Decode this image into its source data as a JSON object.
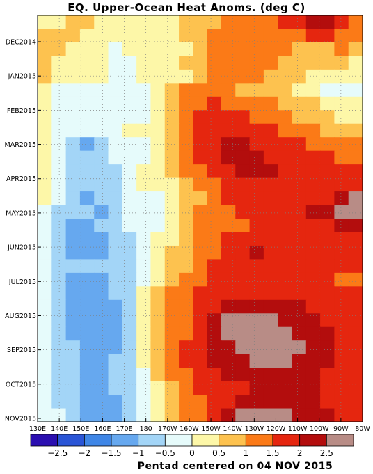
{
  "chart_data": {
    "type": "heatmap",
    "title": "EQ. Upper-Ocean Heat Anoms. (deg C)",
    "footer": "Pentad centered on 04 NOV 2015",
    "x_ticks": [
      "130E",
      "140E",
      "150E",
      "160E",
      "170E",
      "180",
      "170W",
      "160W",
      "150W",
      "140W",
      "130W",
      "120W",
      "110W",
      "100W",
      "90W",
      "80W"
    ],
    "y_ticks": [
      "DEC2014",
      "JAN2015",
      "FEB2015",
      "MAR2015",
      "APR2015",
      "MAY2015",
      "JUN2015",
      "JUL2015",
      "AUG2015",
      "SEP2015",
      "OCT2015",
      "NOV2015"
    ],
    "colorbar": {
      "labels": [
        "-2.5",
        "-2",
        "-1.5",
        "-1",
        "-0.5",
        "0",
        "0.5",
        "1",
        "1.5",
        "2",
        "2.5"
      ],
      "colors": [
        "#2b0fb0",
        "#2a55d6",
        "#3f86e6",
        "#66a8ef",
        "#a3d5f7",
        "#e6fbfb",
        "#fdf7a8",
        "#fdc24f",
        "#fb7a17",
        "#e5260f",
        "#b30d0d",
        "#b88c86"
      ]
    },
    "field": [
      [
        1,
        1,
        2,
        2,
        1,
        1,
        1,
        1,
        1,
        1,
        2,
        2,
        2,
        3,
        3,
        3,
        3,
        4,
        4,
        5,
        5,
        4,
        3
      ],
      [
        2,
        2,
        2,
        1,
        1,
        1,
        1,
        1,
        1,
        1,
        2,
        2,
        3,
        3,
        3,
        3,
        3,
        3,
        3,
        4,
        4,
        3,
        3
      ],
      [
        2,
        2,
        1,
        1,
        1,
        0,
        1,
        1,
        1,
        1,
        1,
        2,
        3,
        3,
        3,
        3,
        3,
        3,
        2,
        2,
        2,
        3,
        2
      ],
      [
        2,
        1,
        1,
        1,
        1,
        0,
        0,
        1,
        1,
        1,
        2,
        2,
        3,
        3,
        3,
        3,
        3,
        2,
        2,
        2,
        2,
        2,
        1
      ],
      [
        2,
        1,
        1,
        1,
        1,
        0,
        0,
        1,
        1,
        1,
        1,
        2,
        3,
        3,
        3,
        3,
        2,
        2,
        2,
        1,
        1,
        1,
        1
      ],
      [
        1,
        0,
        0,
        0,
        0,
        0,
        0,
        0,
        1,
        2,
        3,
        3,
        3,
        3,
        2,
        2,
        2,
        2,
        1,
        1,
        0,
        0,
        0
      ],
      [
        1,
        0,
        0,
        0,
        0,
        0,
        0,
        0,
        1,
        2,
        3,
        3,
        4,
        3,
        3,
        3,
        3,
        2,
        2,
        2,
        1,
        1,
        1
      ],
      [
        1,
        0,
        0,
        0,
        0,
        0,
        0,
        0,
        1,
        2,
        3,
        4,
        4,
        4,
        4,
        3,
        3,
        3,
        2,
        2,
        2,
        1,
        1
      ],
      [
        1,
        0,
        0,
        0,
        0,
        0,
        1,
        1,
        1,
        2,
        3,
        4,
        4,
        4,
        4,
        4,
        4,
        3,
        3,
        3,
        2,
        2,
        2
      ],
      [
        1,
        0,
        -1,
        -2,
        -1,
        0,
        0,
        0,
        1,
        2,
        3,
        4,
        4,
        5,
        5,
        4,
        4,
        4,
        4,
        3,
        3,
        3,
        3
      ],
      [
        1,
        0,
        -1,
        -1,
        -1,
        0,
        0,
        0,
        1,
        2,
        3,
        4,
        4,
        5,
        5,
        5,
        4,
        4,
        4,
        4,
        4,
        3,
        3
      ],
      [
        1,
        0,
        -1,
        -1,
        -1,
        -1,
        0,
        1,
        1,
        2,
        3,
        3,
        4,
        4,
        5,
        5,
        5,
        4,
        4,
        4,
        4,
        4,
        4
      ],
      [
        1,
        0,
        -1,
        -1,
        -1,
        -1,
        0,
        1,
        1,
        1,
        2,
        3,
        3,
        4,
        4,
        4,
        4,
        4,
        4,
        4,
        4,
        4,
        4
      ],
      [
        1,
        0,
        -1,
        -2,
        -1,
        -1,
        0,
        0,
        0,
        1,
        2,
        2,
        3,
        4,
        4,
        4,
        4,
        4,
        4,
        4,
        4,
        5,
        6
      ],
      [
        0,
        -1,
        -1,
        -1,
        -2,
        -1,
        0,
        0,
        0,
        1,
        2,
        3,
        3,
        3,
        4,
        4,
        4,
        4,
        4,
        5,
        5,
        6,
        6
      ],
      [
        0,
        -1,
        -2,
        -2,
        -1,
        -1,
        0,
        0,
        0,
        1,
        2,
        3,
        3,
        3,
        3,
        4,
        4,
        4,
        4,
        4,
        4,
        5,
        5
      ],
      [
        0,
        -1,
        -2,
        -2,
        -2,
        -1,
        -1,
        0,
        1,
        1,
        2,
        3,
        3,
        4,
        4,
        4,
        4,
        4,
        4,
        4,
        4,
        4,
        4
      ],
      [
        0,
        -1,
        -2,
        -2,
        -2,
        -1,
        -1,
        0,
        1,
        2,
        2,
        3,
        3,
        4,
        4,
        5,
        4,
        4,
        4,
        4,
        4,
        4,
        4
      ],
      [
        0,
        -1,
        -1,
        -1,
        -1,
        -1,
        -1,
        0,
        1,
        2,
        2,
        3,
        4,
        4,
        4,
        4,
        4,
        4,
        4,
        4,
        4,
        4,
        4
      ],
      [
        0,
        -1,
        -2,
        -2,
        -2,
        -1,
        -1,
        0,
        1,
        2,
        3,
        3,
        4,
        4,
        4,
        4,
        4,
        4,
        4,
        4,
        4,
        3,
        3
      ],
      [
        0,
        -1,
        -2,
        -2,
        -2,
        -1,
        -1,
        1,
        2,
        3,
        3,
        4,
        4,
        4,
        4,
        4,
        4,
        4,
        4,
        4,
        4,
        4,
        4
      ],
      [
        0,
        -1,
        -2,
        -2,
        -2,
        -2,
        -1,
        1,
        2,
        3,
        3,
        4,
        4,
        5,
        5,
        5,
        5,
        5,
        5,
        4,
        4,
        4,
        4
      ],
      [
        0,
        -1,
        -2,
        -2,
        -2,
        -2,
        -1,
        1,
        2,
        3,
        3,
        4,
        5,
        6,
        6,
        6,
        6,
        5,
        5,
        5,
        4,
        4,
        4
      ],
      [
        0,
        -1,
        -2,
        -2,
        -2,
        -2,
        -1,
        1,
        2,
        3,
        3,
        4,
        5,
        6,
        6,
        6,
        6,
        6,
        5,
        5,
        5,
        4,
        4
      ],
      [
        0,
        -1,
        -1,
        -2,
        -2,
        -2,
        -1,
        1,
        2,
        3,
        4,
        4,
        5,
        5,
        6,
        6,
        6,
        6,
        6,
        5,
        5,
        4,
        4
      ],
      [
        0,
        -1,
        -1,
        -2,
        -2,
        -1,
        -1,
        1,
        2,
        3,
        4,
        4,
        5,
        5,
        5,
        6,
        6,
        6,
        5,
        5,
        5,
        4,
        4
      ],
      [
        0,
        -1,
        -1,
        -2,
        -2,
        -1,
        -1,
        0,
        2,
        3,
        3,
        4,
        4,
        5,
        5,
        5,
        5,
        5,
        5,
        5,
        4,
        4,
        4
      ],
      [
        0,
        -1,
        -1,
        -2,
        -2,
        -1,
        -1,
        0,
        1,
        2,
        3,
        4,
        4,
        4,
        4,
        5,
        5,
        5,
        5,
        5,
        4,
        4,
        4
      ],
      [
        0,
        -1,
        -1,
        -2,
        -2,
        -2,
        -1,
        0,
        1,
        2,
        3,
        3,
        4,
        4,
        5,
        5,
        5,
        5,
        5,
        5,
        4,
        4,
        4
      ],
      [
        0,
        0,
        -1,
        -2,
        -2,
        -2,
        -1,
        0,
        1,
        2,
        3,
        3,
        4,
        5,
        6,
        6,
        6,
        6,
        5,
        5,
        5,
        4,
        4
      ]
    ]
  }
}
